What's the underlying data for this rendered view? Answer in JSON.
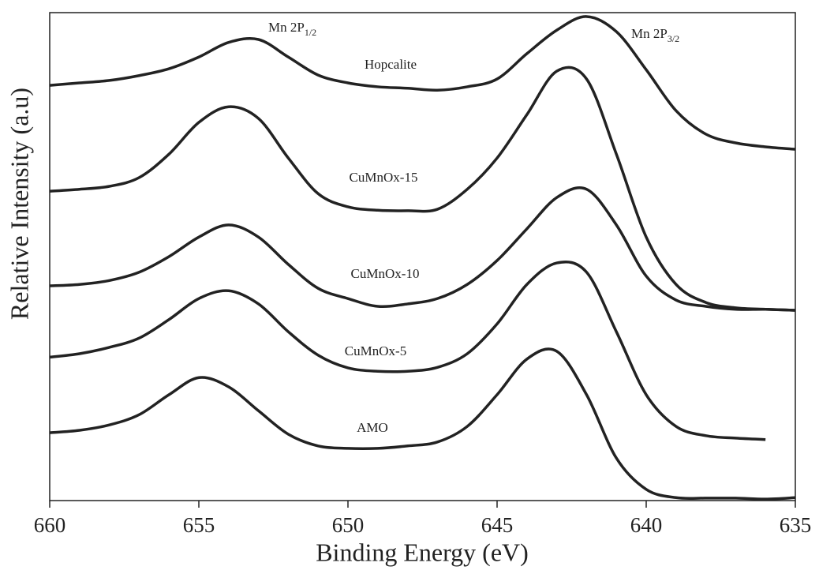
{
  "chart_data": {
    "type": "line",
    "x_label": "Binding Energy (eV)",
    "y_label": "Relative Intensity (a.u)",
    "xlim": [
      660,
      635
    ],
    "xticks": [
      660,
      655,
      650,
      645,
      640,
      635
    ],
    "ylim": [
      0,
      100
    ],
    "x": [
      660,
      659,
      658,
      657,
      656,
      655,
      654,
      653,
      652,
      651,
      650,
      649,
      648,
      647,
      646,
      645,
      644,
      643,
      642,
      641,
      640,
      639,
      638,
      637,
      636,
      635
    ],
    "series": [
      {
        "name": "Hopcalite",
        "color": "#222222",
        "values": [
          85.1,
          85.6,
          86.1,
          87.1,
          88.5,
          90.9,
          93.9,
          94.5,
          90.9,
          87.2,
          85.6,
          84.8,
          84.5,
          84.1,
          84.8,
          86.4,
          91.6,
          96.4,
          99.2,
          96.1,
          88.3,
          79.9,
          75.1,
          73.3,
          72.5,
          72.0
        ]
      },
      {
        "name": "CuMnOx-15",
        "color": "#222222",
        "values": [
          63.4,
          63.8,
          64.4,
          66.2,
          71.0,
          77.5,
          80.7,
          78.3,
          70.2,
          62.9,
          60.2,
          59.5,
          59.4,
          59.7,
          63.8,
          70.2,
          79.1,
          88.0,
          86.4,
          71.0,
          54.0,
          44.3,
          40.6,
          39.5,
          39.2,
          39.0
        ]
      },
      {
        "name": "CuMnOx-10",
        "color": "#222222",
        "values": [
          44.0,
          44.3,
          45.1,
          46.8,
          50.0,
          54.0,
          56.5,
          54.0,
          48.4,
          43.5,
          41.4,
          39.8,
          40.3,
          41.4,
          44.3,
          49.2,
          55.7,
          62.1,
          63.8,
          56.5,
          46.0,
          41.1,
          39.8,
          39.2,
          39.2,
          39.0
        ]
      },
      {
        "name": "CuMnOx-5",
        "color": "#222222",
        "values": [
          29.4,
          30.1,
          31.4,
          33.3,
          37.1,
          41.4,
          43.0,
          40.3,
          34.6,
          29.8,
          27.2,
          26.5,
          26.5,
          27.3,
          30.1,
          36.2,
          44.3,
          48.7,
          46.8,
          34.6,
          21.7,
          15.2,
          13.3,
          12.8,
          12.5,
          null
        ]
      },
      {
        "name": "AMO",
        "color": "#222222",
        "values": [
          13.9,
          14.4,
          15.5,
          17.6,
          21.7,
          25.2,
          23.3,
          18.4,
          13.6,
          11.2,
          10.7,
          10.7,
          11.2,
          12.0,
          15.2,
          21.7,
          29.0,
          30.6,
          21.7,
          8.7,
          2.3,
          0.6,
          0.5,
          0.5,
          0.3,
          0.6
        ]
      }
    ],
    "annotations": [
      {
        "text": "Mn 2P",
        "sub": "1/2"
      },
      {
        "text": "Mn 2P",
        "sub": "3/2"
      }
    ]
  }
}
